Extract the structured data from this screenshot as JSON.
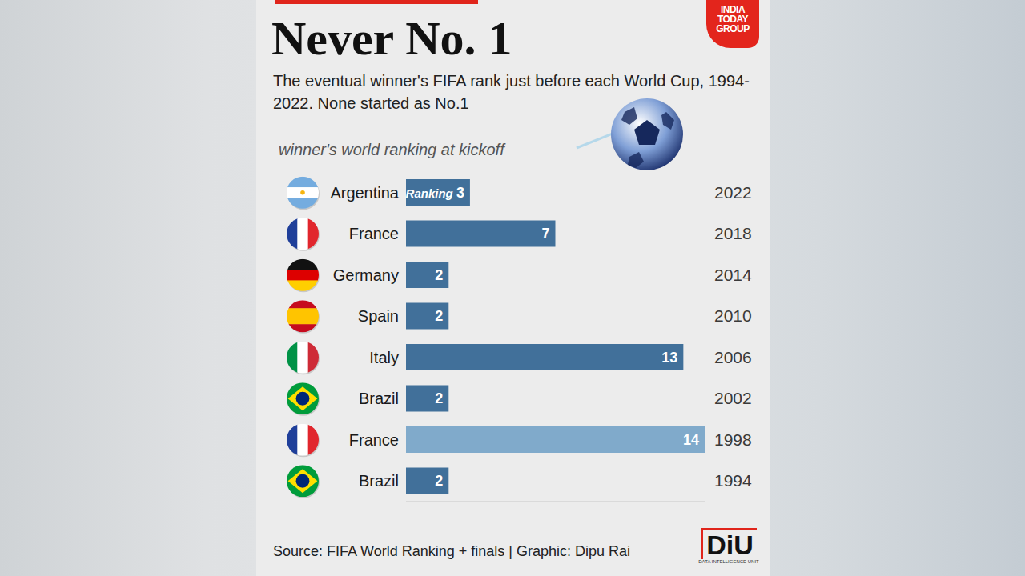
{
  "chart_data": {
    "type": "bar",
    "orientation": "horizontal",
    "title": "Never No. 1",
    "subtitle": "The eventual winner's FIFA rank just before each World Cup, 1994-2022. None started as No.1",
    "xlabel": "winner's world ranking at kickoff",
    "categories": [
      "Argentina",
      "France",
      "Germany",
      "Spain",
      "Italy",
      "Brazil",
      "France",
      "Brazil"
    ],
    "years": [
      "2022",
      "2018",
      "2014",
      "2010",
      "2006",
      "2002",
      "1998",
      "1994"
    ],
    "values": [
      3,
      7,
      2,
      2,
      13,
      2,
      14,
      2
    ],
    "value_labels": [
      "Ranking 3",
      "7",
      "2",
      "2",
      "13",
      "2",
      "14",
      "2"
    ],
    "colors": [
      "#41709a",
      "#41709a",
      "#41709a",
      "#41709a",
      "#41709a",
      "#41709a",
      "#80aacb",
      "#41709a"
    ],
    "xlim": [
      0,
      14
    ],
    "tick_labels": false,
    "data_labels": true,
    "grid": false,
    "source": "Source: FIFA World Ranking + finals | Graphic: Dipu Rai",
    "logo_top": "INDIA TODAY GROUP",
    "logo_bottom": "DiU",
    "logo_bottom_caption": "DATA INTELLIGENCE UNIT"
  }
}
